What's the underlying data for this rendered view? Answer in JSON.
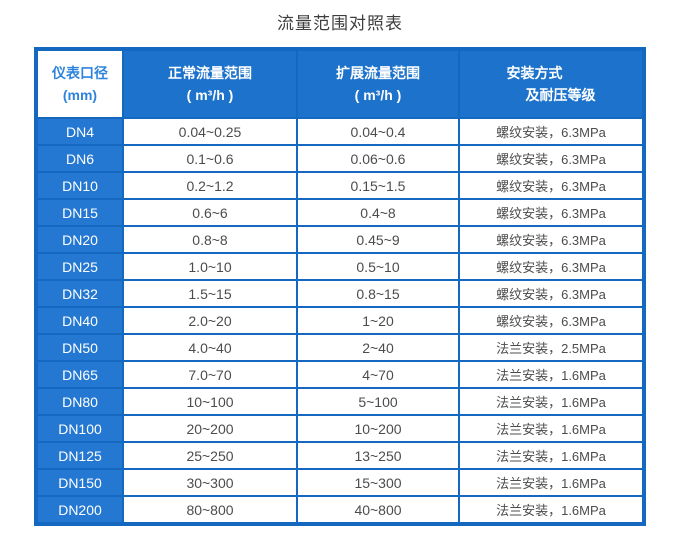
{
  "title": "流量范围对照表",
  "chart_data": {
    "type": "table",
    "title": "流量范围对照表",
    "columns": [
      {
        "name": "meter-diameter",
        "line1": "仪表口径",
        "line2": "(mm)"
      },
      {
        "name": "normal-range",
        "line1": "正常流量范围",
        "line2": "( m³/h )"
      },
      {
        "name": "extended-range",
        "line1": "扩展流量范围",
        "line2": "( m³/h )"
      },
      {
        "name": "install-method",
        "line1": "安装方式",
        "line2": "及耐压等级"
      }
    ],
    "rows": [
      [
        "DN4",
        "0.04~0.25",
        "0.04~0.4",
        "螺纹安装，6.3MPa"
      ],
      [
        "DN6",
        "0.1~0.6",
        "0.06~0.6",
        "螺纹安装，6.3MPa"
      ],
      [
        "DN10",
        "0.2~1.2",
        "0.15~1.5",
        "螺纹安装，6.3MPa"
      ],
      [
        "DN15",
        "0.6~6",
        "0.4~8",
        "螺纹安装，6.3MPa"
      ],
      [
        "DN20",
        "0.8~8",
        "0.45~9",
        "螺纹安装，6.3MPa"
      ],
      [
        "DN25",
        "1.0~10",
        "0.5~10",
        "螺纹安装，6.3MPa"
      ],
      [
        "DN32",
        "1.5~15",
        "0.8~15",
        "螺纹安装，6.3MPa"
      ],
      [
        "DN40",
        "2.0~20",
        "1~20",
        "螺纹安装，6.3MPa"
      ],
      [
        "DN50",
        "4.0~40",
        "2~40",
        "法兰安装，2.5MPa"
      ],
      [
        "DN65",
        "7.0~70",
        "4~70",
        "法兰安装，1.6MPa"
      ],
      [
        "DN80",
        "10~100",
        "5~100",
        "法兰安装，1.6MPa"
      ],
      [
        "DN100",
        "20~200",
        "10~200",
        "法兰安装，1.6MPa"
      ],
      [
        "DN125",
        "25~250",
        "13~250",
        "法兰安装，1.6MPa"
      ],
      [
        "DN150",
        "30~300",
        "15~300",
        "法兰安装，1.6MPa"
      ],
      [
        "DN200",
        "80~800",
        "40~800",
        "法兰安装，1.6MPa"
      ]
    ]
  },
  "colors": {
    "frame_blue": "#1568c0",
    "header_blue": "#1d73cb",
    "dn_cell_blue": "#2478d2",
    "header_text": "#ffffff",
    "first_header_text": "#2e84dc",
    "data_text": "#4c4c4c",
    "title_text": "#3e3e3e",
    "cell_background": "#ffffff"
  }
}
